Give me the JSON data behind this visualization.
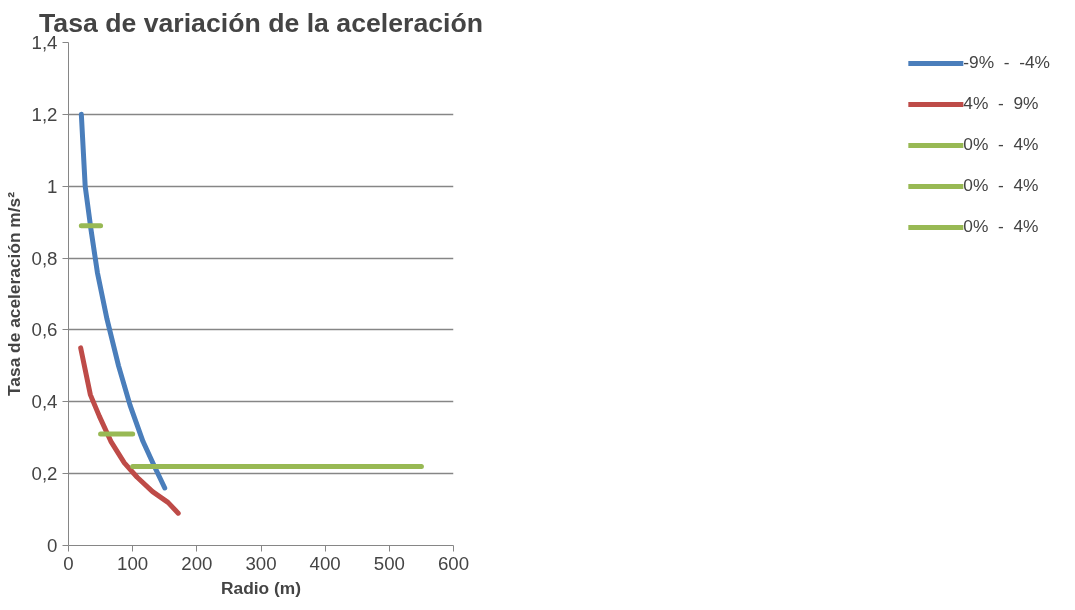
{
  "chart_data": {
    "type": "line",
    "title": "Tasa de variación de la aceleración",
    "xlabel": "Radio (m)",
    "ylabel": "Tasa de aceleración m/s²",
    "series": [
      {
        "name": "-9%  -  -4%",
        "color": "#4a7ebb",
        "x": [
          20,
          26,
          35,
          45,
          60,
          78,
          96,
          116,
          134,
          150
        ],
        "values": [
          1.2,
          1.0,
          0.88,
          0.76,
          0.63,
          0.5,
          0.39,
          0.29,
          0.22,
          0.16
        ]
      },
      {
        "name": "4%  -  9%",
        "color": "#be4b48",
        "x": [
          19,
          34,
          48,
          66,
          87,
          107,
          131,
          155,
          171
        ],
        "values": [
          0.55,
          0.42,
          0.36,
          0.29,
          0.23,
          0.19,
          0.15,
          0.12,
          0.09
        ]
      },
      {
        "name": "0%  -  4%",
        "color": "#98b954",
        "x": [
          20,
          50
        ],
        "values": [
          0.89,
          0.89
        ]
      },
      {
        "name": "0%  -  4%",
        "color": "#98b954",
        "x": [
          50,
          100
        ],
        "values": [
          0.31,
          0.31
        ]
      },
      {
        "name": "0%  -  4%",
        "color": "#98b954",
        "x": [
          100,
          550
        ],
        "values": [
          0.22,
          0.22
        ]
      }
    ],
    "xlim": [
      0,
      600
    ],
    "xticks": [
      0,
      100,
      200,
      300,
      400,
      500,
      600
    ],
    "ylim": [
      0,
      1.4
    ],
    "yticks": [
      0,
      {
        "value": 0.2,
        "label": "0,2"
      },
      {
        "value": 0.4,
        "label": "0,4"
      },
      {
        "value": 0.6,
        "label": "0,6"
      },
      {
        "value": 0.8,
        "label": "0,8"
      },
      1,
      {
        "value": 1.2,
        "label": "1,2"
      },
      {
        "value": 1.4,
        "label": "1,4"
      }
    ],
    "grid": "y",
    "legend": "right",
    "marker": "none",
    "line_style": "solid"
  }
}
